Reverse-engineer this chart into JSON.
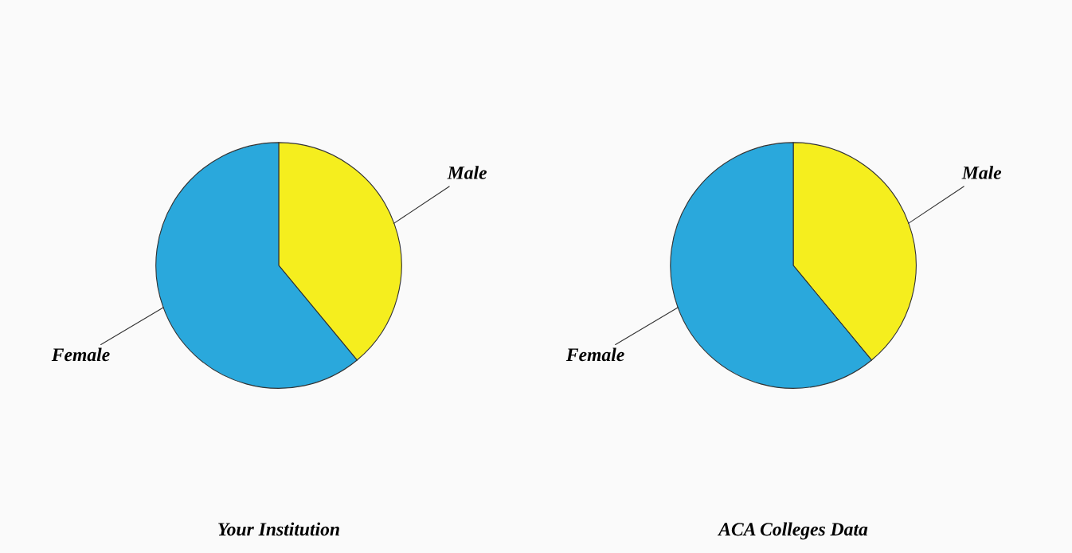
{
  "chart_data": [
    {
      "type": "pie",
      "title": "Your Institution",
      "categories": [
        "Male",
        "Female"
      ],
      "values": [
        39,
        61
      ],
      "colors": [
        "#f5ee1e",
        "#2aa8dc"
      ]
    },
    {
      "type": "pie",
      "title": "ACA Colleges Data",
      "categories": [
        "Male",
        "Female"
      ],
      "values": [
        39,
        61
      ],
      "colors": [
        "#f5ee1e",
        "#2aa8dc"
      ]
    }
  ]
}
